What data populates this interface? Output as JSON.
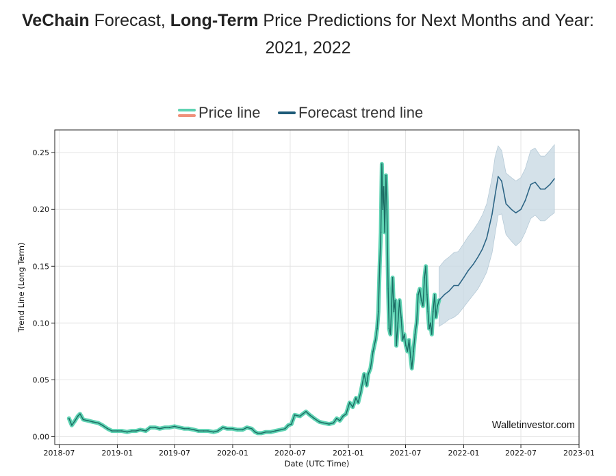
{
  "page": {
    "heading_bold_1": "VeChain",
    "heading_text_1": " Forecast, ",
    "heading_bold_2": "Long-Term",
    "heading_text_2": " Price Predictions for Next Months and Year:",
    "heading_line_2": "2021, 2022"
  },
  "legend": {
    "price_label": "Price line",
    "forecast_label": "Forecast trend line"
  },
  "colors": {
    "price_fill": "#5fd3b3",
    "price_line": "#1b6b63",
    "price_alt": "#f0907a",
    "forecast_line": "#2d6585",
    "forecast_band": "#c9d9e3",
    "forecast_legend": "#1d5a78"
  },
  "watermark": "Walletinvestor.com",
  "chart_data": {
    "type": "line",
    "xlabel": "Date (UTC Time)",
    "ylabel": "Trend Line (Long Term)",
    "x_range": [
      "2018-06-17",
      "2023-01-01"
    ],
    "ylim": [
      -0.007,
      0.27
    ],
    "grid": true,
    "legend_position": "top-center",
    "x_ticks": [
      "2018-07",
      "2019-01",
      "2019-07",
      "2020-01",
      "2020-07",
      "2021-01",
      "2021-07",
      "2022-01",
      "2022-07",
      "2023-01"
    ],
    "y_ticks": [
      "0.00",
      "0.05",
      "0.10",
      "0.15",
      "0.20",
      "0.25"
    ],
    "series": [
      {
        "name": "Price line",
        "x": [
          "2018-08-01",
          "2018-08-10",
          "2018-08-20",
          "2018-08-29",
          "2018-09-05",
          "2018-09-15",
          "2018-09-30",
          "2018-10-15",
          "2018-11-01",
          "2018-11-15",
          "2018-12-01",
          "2018-12-15",
          "2019-01-01",
          "2019-01-15",
          "2019-02-01",
          "2019-02-15",
          "2019-03-01",
          "2019-03-15",
          "2019-04-01",
          "2019-04-15",
          "2019-05-01",
          "2019-05-15",
          "2019-06-01",
          "2019-06-15",
          "2019-07-01",
          "2019-07-15",
          "2019-08-01",
          "2019-08-15",
          "2019-09-01",
          "2019-09-15",
          "2019-10-01",
          "2019-10-15",
          "2019-11-01",
          "2019-11-15",
          "2019-12-01",
          "2019-12-15",
          "2020-01-01",
          "2020-01-15",
          "2020-02-01",
          "2020-02-15",
          "2020-03-01",
          "2020-03-12",
          "2020-03-20",
          "2020-04-01",
          "2020-04-15",
          "2020-05-01",
          "2020-05-15",
          "2020-06-01",
          "2020-06-15",
          "2020-06-25",
          "2020-07-05",
          "2020-07-15",
          "2020-08-01",
          "2020-08-10",
          "2020-08-20",
          "2020-09-01",
          "2020-09-15",
          "2020-10-01",
          "2020-10-15",
          "2020-11-01",
          "2020-11-15",
          "2020-11-25",
          "2020-12-05",
          "2020-12-15",
          "2020-12-25",
          "2021-01-05",
          "2021-01-15",
          "2021-01-25",
          "2021-02-01",
          "2021-02-10",
          "2021-02-20",
          "2021-02-28",
          "2021-03-05",
          "2021-03-12",
          "2021-03-20",
          "2021-03-28",
          "2021-04-02",
          "2021-04-06",
          "2021-04-10",
          "2021-04-14",
          "2021-04-17",
          "2021-04-20",
          "2021-04-23",
          "2021-04-26",
          "2021-04-30",
          "2021-05-03",
          "2021-05-07",
          "2021-05-10",
          "2021-05-14",
          "2021-05-18",
          "2021-05-21",
          "2021-05-25",
          "2021-05-29",
          "2021-06-02",
          "2021-06-07",
          "2021-06-12",
          "2021-06-17",
          "2021-06-22",
          "2021-06-27",
          "2021-07-02",
          "2021-07-07",
          "2021-07-12",
          "2021-07-17",
          "2021-07-21",
          "2021-07-26",
          "2021-07-31",
          "2021-08-05",
          "2021-08-10",
          "2021-08-15",
          "2021-08-20",
          "2021-08-25",
          "2021-08-30",
          "2021-09-03",
          "2021-09-07",
          "2021-09-10",
          "2021-09-14",
          "2021-09-18",
          "2021-09-22",
          "2021-09-26",
          "2021-10-01",
          "2021-10-05",
          "2021-10-10",
          "2021-10-15"
        ],
        "y": [
          0.016,
          0.01,
          0.014,
          0.018,
          0.02,
          0.015,
          0.014,
          0.013,
          0.012,
          0.01,
          0.007,
          0.005,
          0.005,
          0.005,
          0.004,
          0.005,
          0.005,
          0.006,
          0.005,
          0.008,
          0.008,
          0.007,
          0.008,
          0.008,
          0.009,
          0.008,
          0.007,
          0.007,
          0.006,
          0.005,
          0.005,
          0.005,
          0.004,
          0.005,
          0.008,
          0.007,
          0.007,
          0.006,
          0.006,
          0.008,
          0.007,
          0.004,
          0.003,
          0.003,
          0.004,
          0.004,
          0.005,
          0.006,
          0.007,
          0.01,
          0.011,
          0.019,
          0.018,
          0.02,
          0.022,
          0.019,
          0.016,
          0.013,
          0.012,
          0.011,
          0.012,
          0.016,
          0.014,
          0.018,
          0.02,
          0.03,
          0.026,
          0.034,
          0.03,
          0.04,
          0.055,
          0.045,
          0.055,
          0.06,
          0.075,
          0.085,
          0.095,
          0.11,
          0.15,
          0.18,
          0.24,
          0.2,
          0.22,
          0.18,
          0.23,
          0.2,
          0.13,
          0.095,
          0.09,
          0.115,
          0.14,
          0.11,
          0.12,
          0.08,
          0.1,
          0.12,
          0.105,
          0.085,
          0.09,
          0.08,
          0.075,
          0.085,
          0.07,
          0.06,
          0.075,
          0.09,
          0.1,
          0.125,
          0.13,
          0.12,
          0.115,
          0.14,
          0.15,
          0.125,
          0.11,
          0.095,
          0.1,
          0.09,
          0.11,
          0.125,
          0.105,
          0.115,
          0.12
        ]
      },
      {
        "name": "Forecast trend line",
        "x": [
          "2021-10-15",
          "2021-11-01",
          "2021-11-15",
          "2021-12-01",
          "2021-12-15",
          "2022-01-01",
          "2022-01-15",
          "2022-02-01",
          "2022-02-15",
          "2022-03-01",
          "2022-03-15",
          "2022-04-01",
          "2022-04-10",
          "2022-04-20",
          "2022-05-01",
          "2022-05-15",
          "2022-06-01",
          "2022-06-15",
          "2022-07-01",
          "2022-07-15",
          "2022-08-01",
          "2022-08-15",
          "2022-09-01",
          "2022-09-15",
          "2022-10-01",
          "2022-10-15"
        ],
        "y": [
          0.12,
          0.125,
          0.128,
          0.133,
          0.133,
          0.14,
          0.146,
          0.152,
          0.158,
          0.165,
          0.175,
          0.196,
          0.212,
          0.229,
          0.225,
          0.205,
          0.2,
          0.197,
          0.2,
          0.208,
          0.222,
          0.224,
          0.218,
          0.218,
          0.222,
          0.227
        ],
        "lower": [
          0.097,
          0.1,
          0.103,
          0.105,
          0.108,
          0.114,
          0.119,
          0.125,
          0.13,
          0.137,
          0.145,
          0.162,
          0.178,
          0.195,
          0.196,
          0.178,
          0.172,
          0.168,
          0.172,
          0.18,
          0.192,
          0.195,
          0.19,
          0.19,
          0.194,
          0.197
        ],
        "upper": [
          0.149,
          0.155,
          0.158,
          0.162,
          0.163,
          0.17,
          0.176,
          0.182,
          0.188,
          0.195,
          0.205,
          0.228,
          0.246,
          0.256,
          0.252,
          0.232,
          0.228,
          0.225,
          0.228,
          0.236,
          0.252,
          0.254,
          0.247,
          0.247,
          0.252,
          0.257
        ]
      }
    ]
  }
}
